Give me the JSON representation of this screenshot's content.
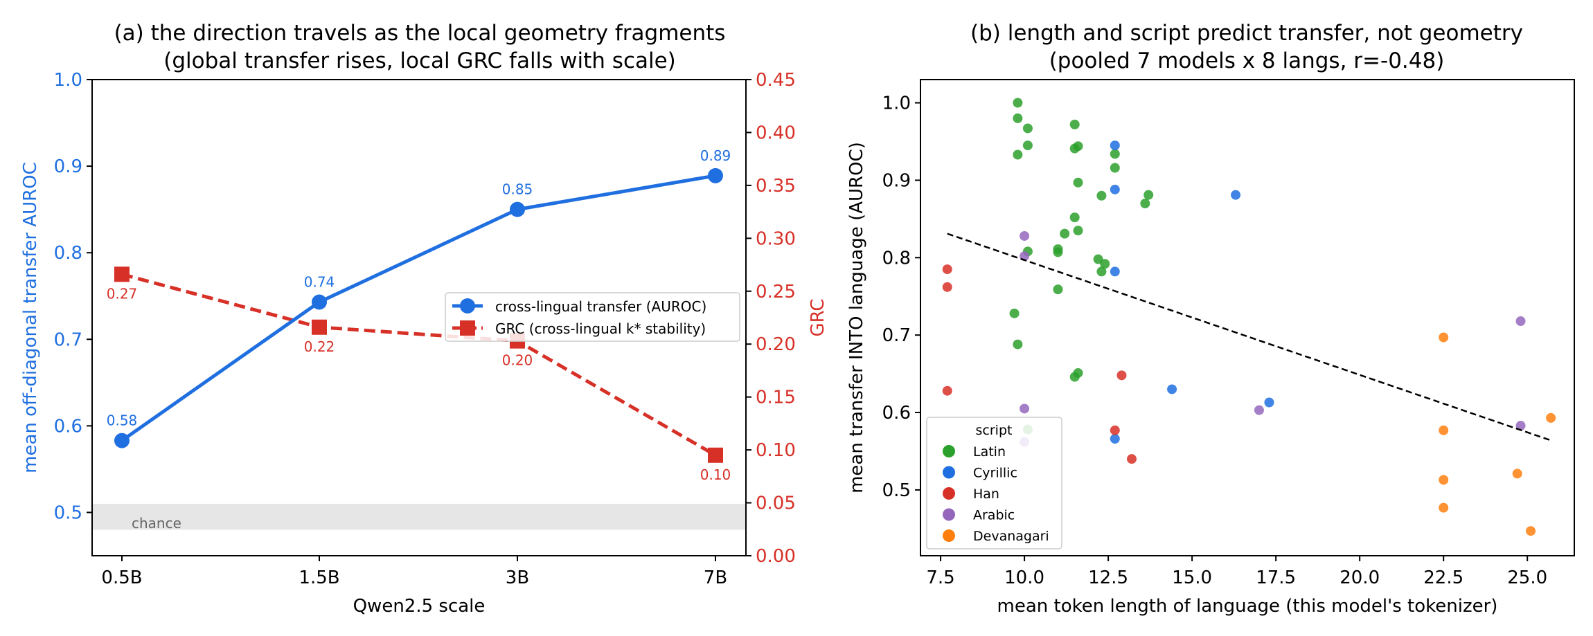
{
  "chart_data": [
    {
      "type": "line",
      "title_lines": [
        "(a) the direction travels as the local geometry fragments",
        "(global transfer rises, local GRC falls with scale)"
      ],
      "xlabel": "Qwen2.5 scale",
      "ylabel": "mean off-diagonal transfer AUROC",
      "y2label": "GRC",
      "categories": [
        "0.5B",
        "1.5B",
        "3B",
        "7B"
      ],
      "ylim": [
        0.45,
        1.0
      ],
      "yticks": [
        "0.5",
        "0.6",
        "0.7",
        "0.8",
        "0.9",
        "1.0"
      ],
      "y2lim": [
        0.0,
        0.45
      ],
      "y2ticks": [
        "0.00",
        "0.05",
        "0.10",
        "0.15",
        "0.20",
        "0.25",
        "0.30",
        "0.35",
        "0.40",
        "0.45"
      ],
      "chance_band": [
        0.48,
        0.51
      ],
      "chance_label": "chance",
      "legend_position": "center-right",
      "series": [
        {
          "name": "cross-lingual transfer (AUROC)",
          "axis": "left",
          "values": [
            0.583,
            0.743,
            0.85,
            0.889
          ],
          "labels": [
            "0.58",
            "0.74",
            "0.85",
            "0.89"
          ],
          "color": "#1f6fe0"
        },
        {
          "name": "GRC (cross-lingual k* stability)",
          "axis": "right",
          "values": [
            0.266,
            0.216,
            0.203,
            0.095
          ],
          "labels": [
            "0.27",
            "0.22",
            "0.20",
            "0.10"
          ],
          "color": "#d73027"
        }
      ]
    },
    {
      "type": "scatter",
      "title_lines": [
        "(b) length and script predict transfer, not geometry",
        "(pooled 7 models x 8 langs, r=-0.48)"
      ],
      "xlabel": "mean token length of language (this model's tokenizer)",
      "ylabel": "mean transfer INTO language (AUROC)",
      "xlim": [
        6.9,
        26.4
      ],
      "ylim": [
        0.415,
        1.03
      ],
      "xticks": [
        "7.5",
        "10.0",
        "12.5",
        "15.0",
        "17.5",
        "20.0",
        "22.5",
        "25.0"
      ],
      "yticks": [
        "0.5",
        "0.6",
        "0.7",
        "0.8",
        "0.9",
        "1.0"
      ],
      "legend_title": "script",
      "legend_position": "lower-left",
      "trend_line": {
        "x": [
          7.7,
          25.7
        ],
        "y": [
          0.831,
          0.564
        ]
      },
      "series": [
        {
          "name": "Latin",
          "color": "#2ca02c",
          "points": [
            [
              9.8,
              1.0
            ],
            [
              9.8,
              0.98
            ],
            [
              10.1,
              0.967
            ],
            [
              10.1,
              0.945
            ],
            [
              9.8,
              0.933
            ],
            [
              11.5,
              0.972
            ],
            [
              11.6,
              0.944
            ],
            [
              11.5,
              0.941
            ],
            [
              12.7,
              0.934
            ],
            [
              12.7,
              0.916
            ],
            [
              11.6,
              0.897
            ],
            [
              12.3,
              0.88
            ],
            [
              13.7,
              0.881
            ],
            [
              13.6,
              0.87
            ],
            [
              11.5,
              0.852
            ],
            [
              11.6,
              0.835
            ],
            [
              11.2,
              0.831
            ],
            [
              10.1,
              0.808
            ],
            [
              11.0,
              0.811
            ],
            [
              11.0,
              0.807
            ],
            [
              12.2,
              0.798
            ],
            [
              12.4,
              0.792
            ],
            [
              12.3,
              0.782
            ],
            [
              11.0,
              0.759
            ],
            [
              9.7,
              0.728
            ],
            [
              9.8,
              0.688
            ],
            [
              11.6,
              0.651
            ],
            [
              11.5,
              0.646
            ],
            [
              10.1,
              0.578
            ]
          ]
        },
        {
          "name": "Cyrillic",
          "color": "#1f6fe0",
          "points": [
            [
              12.7,
              0.945
            ],
            [
              12.7,
              0.888
            ],
            [
              16.3,
              0.881
            ],
            [
              12.7,
              0.782
            ],
            [
              14.4,
              0.63
            ],
            [
              17.3,
              0.613
            ],
            [
              12.7,
              0.566
            ]
          ]
        },
        {
          "name": "Han",
          "color": "#d73027",
          "points": [
            [
              7.7,
              0.785
            ],
            [
              7.7,
              0.762
            ],
            [
              7.7,
              0.628
            ],
            [
              12.9,
              0.648
            ],
            [
              12.7,
              0.577
            ],
            [
              13.2,
              0.54
            ]
          ]
        },
        {
          "name": "Arabic",
          "color": "#9467bd",
          "points": [
            [
              10.0,
              0.828
            ],
            [
              10.0,
              0.802
            ],
            [
              10.0,
              0.605
            ],
            [
              10.0,
              0.562
            ],
            [
              17.0,
              0.603
            ],
            [
              24.8,
              0.718
            ],
            [
              24.8,
              0.583
            ]
          ]
        },
        {
          "name": "Devanagari",
          "color": "#ff7f0e",
          "points": [
            [
              22.5,
              0.697
            ],
            [
              22.5,
              0.577
            ],
            [
              22.5,
              0.513
            ],
            [
              22.5,
              0.477
            ],
            [
              24.7,
              0.521
            ],
            [
              25.7,
              0.593
            ],
            [
              25.1,
              0.447
            ]
          ]
        }
      ]
    }
  ]
}
